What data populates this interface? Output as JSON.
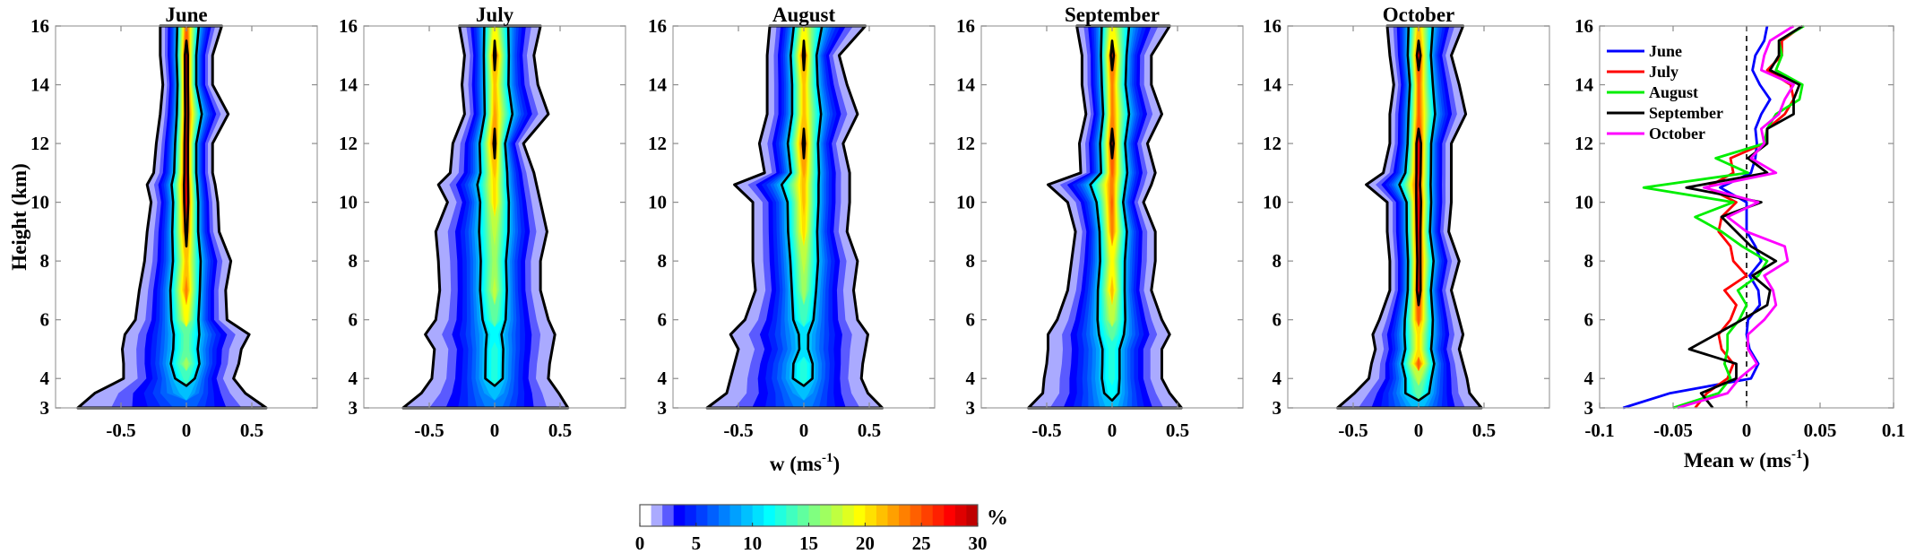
{
  "figure": {
    "ylabel": "Height (km)",
    "xlabel": {
      "base": "w (ms",
      "sup": "-1",
      "close": ")"
    },
    "line_xlabel": {
      "base": "Mean w (ms",
      "sup": "-1",
      "close": ")"
    },
    "colorbar": {
      "unit": "%",
      "range": [
        0,
        30
      ],
      "ticks": [
        "0",
        "5",
        "10",
        "15",
        "20",
        "25",
        "30"
      ],
      "colors": [
        "#ffffff",
        "#aaaaff",
        "#5a5aff",
        "#0000ff",
        "#0020ff",
        "#0040ff",
        "#0060ff",
        "#0080ff",
        "#00a0ff",
        "#00c0ff",
        "#00e0ff",
        "#00ffff",
        "#20ffdf",
        "#40ffbf",
        "#60ff9f",
        "#80ff80",
        "#9fff60",
        "#bfff40",
        "#dfff20",
        "#ffff00",
        "#ffe000",
        "#ffc000",
        "#ffa000",
        "#ff8000",
        "#ff6000",
        "#ff4000",
        "#ff2000",
        "#ff0000",
        "#df0000",
        "#bf0000"
      ]
    }
  },
  "chart_data": [
    {
      "type": "heatmap",
      "title": "June",
      "xlim": [
        -1,
        1
      ],
      "ylim": [
        3,
        16
      ],
      "xticks": [
        "-0.5",
        "0",
        "0.5"
      ],
      "yticks": [
        "3",
        "4",
        "6",
        "8",
        "10",
        "12",
        "14",
        "16"
      ],
      "heights": [
        3,
        3.5,
        4,
        4.5,
        5,
        5.5,
        6,
        7,
        8,
        9,
        10,
        10.6,
        11,
        12,
        13,
        14,
        15,
        16
      ],
      "outer_left": [
        -0.83,
        -0.7,
        -0.48,
        -0.48,
        -0.49,
        -0.47,
        -0.39,
        -0.36,
        -0.32,
        -0.3,
        -0.27,
        -0.3,
        -0.25,
        -0.23,
        -0.2,
        -0.18,
        -0.2,
        -0.2
      ],
      "outer_right": [
        0.61,
        0.45,
        0.36,
        0.4,
        0.42,
        0.48,
        0.31,
        0.3,
        0.34,
        0.25,
        0.24,
        0.22,
        0.2,
        0.2,
        0.32,
        0.2,
        0.2,
        0.27
      ],
      "peak_percent": [
        7,
        10,
        14,
        17,
        15,
        15,
        20,
        24,
        22,
        26,
        28,
        28,
        28,
        28,
        27,
        28,
        28,
        25
      ],
      "contour_levels": [
        1,
        10,
        25
      ]
    },
    {
      "type": "heatmap",
      "title": "July",
      "xlim": [
        -1,
        1
      ],
      "ylim": [
        3,
        16
      ],
      "xticks": [
        "-0.5",
        "0",
        "0.5"
      ],
      "yticks": [
        "3",
        "4",
        "6",
        "8",
        "10",
        "12",
        "14",
        "16"
      ],
      "heights": [
        3,
        3.5,
        4,
        4.5,
        5,
        5.5,
        6,
        7,
        8,
        9,
        10,
        10.6,
        11,
        12,
        13,
        14,
        15,
        16
      ],
      "outer_left": [
        -0.7,
        -0.56,
        -0.48,
        -0.47,
        -0.46,
        -0.53,
        -0.45,
        -0.42,
        -0.43,
        -0.45,
        -0.36,
        -0.43,
        -0.34,
        -0.32,
        -0.23,
        -0.25,
        -0.23,
        -0.27
      ],
      "outer_right": [
        0.56,
        0.49,
        0.41,
        0.42,
        0.44,
        0.46,
        0.41,
        0.35,
        0.35,
        0.4,
        0.35,
        0.32,
        0.3,
        0.22,
        0.41,
        0.33,
        0.3,
        0.35
      ],
      "peak_percent": [
        8,
        10,
        13,
        13,
        13,
        12,
        15,
        18,
        17,
        18,
        21,
        21,
        22,
        26,
        23,
        22,
        26,
        20
      ],
      "contour_levels": [
        1,
        10,
        25
      ]
    },
    {
      "type": "heatmap",
      "title": "August",
      "xlim": [
        -1,
        1
      ],
      "ylim": [
        3,
        16
      ],
      "xticks": [
        "-0.5",
        "0",
        "0.5"
      ],
      "yticks": [
        "3",
        "4",
        "6",
        "8",
        "10",
        "12",
        "14",
        "16"
      ],
      "heights": [
        3,
        3.5,
        4,
        4.5,
        5,
        5.5,
        6,
        7,
        8,
        9,
        10,
        10.6,
        11,
        12,
        13,
        14,
        15,
        16
      ],
      "outer_left": [
        -0.74,
        -0.59,
        -0.56,
        -0.53,
        -0.5,
        -0.56,
        -0.45,
        -0.37,
        -0.39,
        -0.39,
        -0.39,
        -0.53,
        -0.3,
        -0.34,
        -0.28,
        -0.28,
        -0.28,
        -0.26
      ],
      "outer_right": [
        0.6,
        0.49,
        0.44,
        0.45,
        0.47,
        0.49,
        0.41,
        0.38,
        0.41,
        0.33,
        0.35,
        0.35,
        0.35,
        0.3,
        0.41,
        0.33,
        0.27,
        0.47
      ],
      "peak_percent": [
        8,
        10,
        13,
        13,
        11,
        11,
        14,
        17,
        18,
        21,
        22,
        22,
        23,
        26,
        22,
        22,
        26,
        20
      ],
      "contour_levels": [
        1,
        10,
        25
      ]
    },
    {
      "type": "heatmap",
      "title": "September",
      "xlim": [
        -1,
        1
      ],
      "ylim": [
        3,
        16
      ],
      "xticks": [
        "-0.5",
        "0",
        "0.5"
      ],
      "yticks": [
        "3",
        "4",
        "6",
        "8",
        "10",
        "12",
        "14",
        "16"
      ],
      "heights": [
        3,
        3.5,
        4,
        4.5,
        5,
        5.5,
        6,
        7,
        8,
        9,
        10,
        10.6,
        11,
        12,
        13,
        14,
        15,
        16
      ],
      "outer_left": [
        -0.64,
        -0.53,
        -0.52,
        -0.5,
        -0.49,
        -0.49,
        -0.42,
        -0.34,
        -0.31,
        -0.28,
        -0.34,
        -0.49,
        -0.24,
        -0.25,
        -0.2,
        -0.23,
        -0.23,
        -0.27
      ],
      "outer_right": [
        0.53,
        0.44,
        0.38,
        0.38,
        0.38,
        0.44,
        0.38,
        0.3,
        0.33,
        0.33,
        0.24,
        0.3,
        0.33,
        0.27,
        0.38,
        0.3,
        0.3,
        0.44
      ],
      "peak_percent": [
        10,
        12,
        13,
        13,
        13,
        15,
        18,
        22,
        20,
        24,
        25,
        24,
        25,
        27,
        24,
        24,
        27,
        20
      ],
      "contour_levels": [
        1,
        10,
        25
      ]
    },
    {
      "type": "heatmap",
      "title": "October",
      "xlim": [
        -1,
        1
      ],
      "ylim": [
        3,
        16
      ],
      "xticks": [
        "-0.5",
        "0",
        "0.5"
      ],
      "yticks": [
        "3",
        "4",
        "6",
        "8",
        "10",
        "12",
        "14",
        "16"
      ],
      "heights": [
        3,
        3.5,
        4,
        4.5,
        5,
        5.5,
        6,
        7,
        8,
        9,
        10,
        10.6,
        11,
        12,
        13,
        14,
        15,
        16
      ],
      "outer_left": [
        -0.62,
        -0.49,
        -0.38,
        -0.36,
        -0.33,
        -0.35,
        -0.3,
        -0.22,
        -0.22,
        -0.24,
        -0.24,
        -0.4,
        -0.27,
        -0.22,
        -0.22,
        -0.19,
        -0.22,
        -0.24
      ],
      "outer_right": [
        0.48,
        0.39,
        0.37,
        0.34,
        0.31,
        0.34,
        0.31,
        0.25,
        0.31,
        0.23,
        0.25,
        0.25,
        0.25,
        0.25,
        0.36,
        0.31,
        0.25,
        0.34
      ],
      "peak_percent": [
        10,
        15,
        18,
        25,
        21,
        21,
        25,
        28,
        27,
        28,
        29,
        27,
        28,
        29,
        25,
        25,
        28,
        22
      ],
      "contour_levels": [
        1,
        10,
        25
      ]
    },
    {
      "type": "line",
      "title": "",
      "xlabel": "Mean w (ms-1)",
      "ylabel": "Height (km)",
      "xlim": [
        -0.1,
        0.1
      ],
      "ylim": [
        3,
        16
      ],
      "xticks": [
        "-0.1",
        "-0.05",
        "0",
        "0.05",
        "0.1"
      ],
      "yticks": [
        "3",
        "4",
        "6",
        "8",
        "10",
        "12",
        "14",
        "16"
      ],
      "reference_line": {
        "x": 0,
        "style": "dashed"
      },
      "legend": "top-left",
      "heights": [
        3,
        3.5,
        4,
        4.5,
        5,
        5.5,
        6,
        6.5,
        7,
        7.5,
        8,
        8.5,
        9,
        9.5,
        10,
        10.5,
        11,
        11.5,
        12,
        12.5,
        13,
        13.5,
        14,
        14.5,
        15,
        15.5,
        16
      ],
      "series": [
        {
          "name": "June",
          "color": "#0000ff",
          "values": [
            -0.084,
            -0.052,
            0.003,
            0.008,
            0.002,
            0,
            0.001,
            0.009,
            0.008,
            0.002,
            0.01,
            0.006,
            0,
            0,
            0,
            -0.018,
            0.003,
            0.006,
            0.007,
            0.006,
            0.01,
            0.016,
            0.009,
            0.004,
            0.006,
            0.012,
            0.014
          ]
        },
        {
          "name": "July",
          "color": "#ff0000",
          "values": [
            -0.035,
            -0.027,
            -0.013,
            -0.009,
            -0.017,
            -0.019,
            -0.011,
            -0.007,
            -0.015,
            0,
            -0.009,
            -0.011,
            -0.019,
            -0.017,
            -0.007,
            -0.027,
            -0.009,
            -0.011,
            0.012,
            0.014,
            0.026,
            0.032,
            0.03,
            0.014,
            0.024,
            0.024,
            0.038
          ]
        },
        {
          "name": "August",
          "color": "#00ee00",
          "values": [
            -0.05,
            -0.019,
            -0.011,
            -0.015,
            -0.013,
            -0.013,
            -0.005,
            0,
            -0.006,
            0.008,
            0.014,
            -0.003,
            -0.017,
            -0.035,
            -0.009,
            -0.07,
            0.001,
            -0.021,
            0.012,
            0.014,
            0.02,
            0.036,
            0.038,
            0.02,
            0.024,
            0.022,
            0.039
          ]
        },
        {
          "name": "September",
          "color": "#000000",
          "values": [
            -0.023,
            -0.031,
            -0.007,
            -0.007,
            -0.039,
            -0.021,
            -0.003,
            0.014,
            0.016,
            0.004,
            0.02,
            0.003,
            -0.007,
            -0.017,
            0.01,
            -0.041,
            0.014,
            0.001,
            0.014,
            0.014,
            0.032,
            0.032,
            0.036,
            0.016,
            0.022,
            0.022,
            0.038
          ]
        },
        {
          "name": "October",
          "color": "#ff00ff",
          "values": [
            -0.047,
            -0.013,
            -0.005,
            0.007,
            0.001,
            0.001,
            0.012,
            0.02,
            0.018,
            0.012,
            0.028,
            0.026,
            0,
            -0.013,
            0.008,
            -0.029,
            0.02,
            0.003,
            0.012,
            0.01,
            0.022,
            0.026,
            0.032,
            0.01,
            0.012,
            0.016,
            0.032
          ]
        }
      ]
    }
  ]
}
